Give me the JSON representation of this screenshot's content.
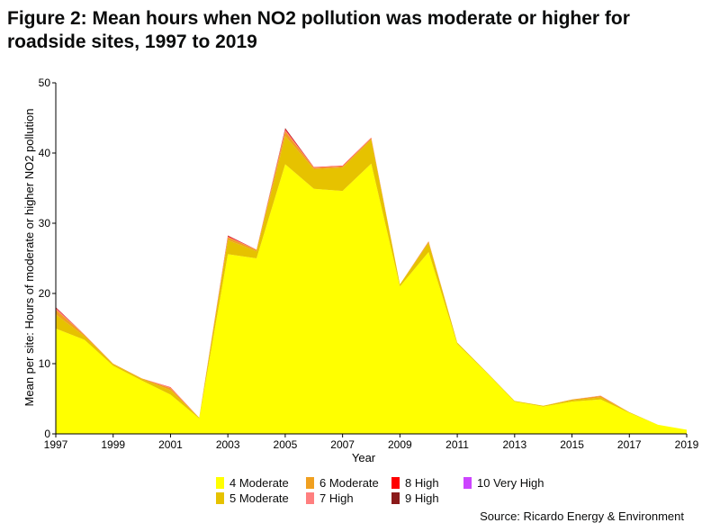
{
  "title": "Figure 2: Mean hours when NO2 pollution was moderate or higher for roadside sites, 1997 to 2019",
  "source": "Source: Ricardo Energy & Environment",
  "chart_data": {
    "type": "area",
    "stacked": true,
    "xlabel": "Year",
    "ylabel": "Mean per site: Hours of moderate or higher NO2 pollution",
    "ylim": [
      0,
      50
    ],
    "xlim": [
      1997,
      2019
    ],
    "yticks": [
      0,
      10,
      20,
      30,
      40,
      50
    ],
    "xticks": [
      1997,
      1999,
      2001,
      2003,
      2005,
      2007,
      2009,
      2011,
      2013,
      2015,
      2017,
      2019
    ],
    "grid": false,
    "legend_position": "bottom",
    "x": [
      1997,
      1998,
      1999,
      2000,
      2001,
      2002,
      2003,
      2004,
      2005,
      2006,
      2007,
      2008,
      2009,
      2010,
      2011,
      2012,
      2013,
      2014,
      2015,
      2016,
      2017,
      2018,
      2019
    ],
    "series": [
      {
        "name": "4 Moderate",
        "color": "#ffff00",
        "values": [
          15.0,
          13.4,
          9.7,
          7.6,
          5.6,
          2.2,
          25.6,
          25.0,
          38.4,
          34.9,
          34.6,
          38.5,
          21.0,
          25.9,
          12.8,
          8.8,
          4.6,
          3.9,
          4.6,
          4.9,
          3.0,
          1.3,
          0.6
        ]
      },
      {
        "name": "5 Moderate",
        "color": "#e6c200",
        "values": [
          2.0,
          0.5,
          0.2,
          0.2,
          0.6,
          0.1,
          2.0,
          1.0,
          4.0,
          2.8,
          3.3,
          3.4,
          0.3,
          1.3,
          0.2,
          0.1,
          0.1,
          0.1,
          0.2,
          0.3,
          0.1,
          0.0,
          0.0
        ]
      },
      {
        "name": "6 Moderate",
        "color": "#f0a020",
        "values": [
          0.7,
          0.2,
          0.1,
          0.1,
          0.3,
          0.0,
          0.4,
          0.2,
          0.7,
          0.2,
          0.2,
          0.2,
          0.0,
          0.2,
          0.0,
          0.0,
          0.0,
          0.0,
          0.1,
          0.2,
          0.0,
          0.0,
          0.0
        ]
      },
      {
        "name": "7 High",
        "color": "#ff7f7f",
        "values": [
          0.2,
          0.05,
          0.0,
          0.0,
          0.1,
          0.0,
          0.1,
          0.05,
          0.2,
          0.05,
          0.05,
          0.05,
          0.0,
          0.05,
          0.0,
          0.0,
          0.0,
          0.0,
          0.0,
          0.05,
          0.0,
          0.0,
          0.0
        ]
      },
      {
        "name": "8 High",
        "color": "#ff0000",
        "values": [
          0.1,
          0.0,
          0.0,
          0.0,
          0.05,
          0.0,
          0.1,
          0.0,
          0.15,
          0.05,
          0.05,
          0.05,
          0.0,
          0.0,
          0.0,
          0.0,
          0.0,
          0.0,
          0.0,
          0.0,
          0.0,
          0.0,
          0.0
        ]
      },
      {
        "name": "9 High",
        "color": "#8b1a1a",
        "values": [
          0.05,
          0.0,
          0.0,
          0.0,
          0.0,
          0.0,
          0.05,
          0.0,
          0.1,
          0.0,
          0.0,
          0.0,
          0.0,
          0.0,
          0.0,
          0.0,
          0.0,
          0.0,
          0.0,
          0.0,
          0.0,
          0.0,
          0.0
        ]
      },
      {
        "name": "10 Very High",
        "color": "#cc44ff",
        "values": [
          0.0,
          0.0,
          0.0,
          0.0,
          0.0,
          0.0,
          0.0,
          0.0,
          0.0,
          0.0,
          0.0,
          0.0,
          0.0,
          0.0,
          0.0,
          0.0,
          0.0,
          0.0,
          0.0,
          0.0,
          0.0,
          0.0,
          0.0
        ]
      }
    ],
    "legend": {
      "rows": [
        [
          "4 Moderate",
          "6 Moderate",
          "8 High",
          "10 Very High"
        ],
        [
          "5 Moderate",
          "7 High",
          "9 High"
        ]
      ]
    }
  }
}
